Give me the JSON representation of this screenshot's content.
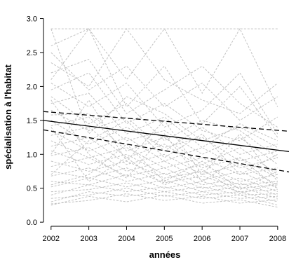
{
  "chart_data": {
    "type": "line",
    "xlabel": "années",
    "ylabel": "spécialisation à l'habitat",
    "x_ticks": [
      "2002",
      "2003",
      "2004",
      "2005",
      "2006",
      "2007",
      "2008"
    ],
    "y_ticks": [
      "0.0",
      "0.5",
      "1.0",
      "1.5",
      "2.0",
      "2.5",
      "3.0"
    ],
    "xlim": [
      2001.8,
      2008.3
    ],
    "ylim": [
      -0.05,
      3.15
    ],
    "series": [
      {
        "values": [
          [
            2002,
            2.85
          ],
          [
            2003,
            1.3
          ],
          [
            2004,
            1.85
          ],
          [
            2005,
            1.6
          ],
          [
            2006,
            1.2
          ],
          [
            2007,
            1.4
          ],
          [
            2008,
            1.1
          ]
        ]
      },
      {
        "values": [
          [
            2002,
            2.6
          ],
          [
            2003,
            2.85
          ],
          [
            2004,
            2.1
          ],
          [
            2005,
            2.85
          ],
          [
            2006,
            1.9
          ],
          [
            2007,
            2.85
          ],
          [
            2008,
            1.7
          ]
        ]
      },
      {
        "values": [
          [
            2002,
            2.35
          ],
          [
            2003,
            2.0
          ],
          [
            2004,
            2.85
          ],
          [
            2005,
            2.1
          ],
          [
            2006,
            1.8
          ],
          [
            2007,
            1.6
          ],
          [
            2008,
            2.05
          ]
        ]
      },
      {
        "values": [
          [
            2002,
            2.2
          ],
          [
            2003,
            2.4
          ],
          [
            2004,
            1.6
          ],
          [
            2005,
            1.95
          ],
          [
            2006,
            2.3
          ],
          [
            2007,
            1.75
          ],
          [
            2008,
            1.4
          ]
        ]
      },
      {
        "values": [
          [
            2002,
            2.05
          ],
          [
            2003,
            1.7
          ],
          [
            2004,
            2.05
          ],
          [
            2005,
            1.4
          ],
          [
            2006,
            1.65
          ],
          [
            2007,
            2.2
          ],
          [
            2008,
            1.3
          ]
        ]
      },
      {
        "values": [
          [
            2002,
            1.95
          ],
          [
            2003,
            2.2
          ],
          [
            2004,
            1.45
          ],
          [
            2005,
            1.75
          ],
          [
            2006,
            1.35
          ],
          [
            2007,
            1.2
          ],
          [
            2008,
            1.55
          ]
        ]
      },
      {
        "values": [
          [
            2002,
            1.85
          ],
          [
            2003,
            1.45
          ],
          [
            2004,
            1.75
          ],
          [
            2005,
            1.2
          ],
          [
            2006,
            1.5
          ],
          [
            2007,
            1.35
          ],
          [
            2008,
            0.95
          ]
        ]
      },
      {
        "values": [
          [
            2002,
            1.75
          ],
          [
            2003,
            1.9
          ],
          [
            2004,
            1.3
          ],
          [
            2005,
            1.55
          ],
          [
            2006,
            1.1
          ],
          [
            2007,
            1.45
          ],
          [
            2008,
            1.2
          ]
        ]
      },
      {
        "values": [
          [
            2002,
            1.65
          ],
          [
            2003,
            1.35
          ],
          [
            2004,
            1.55
          ],
          [
            2005,
            1.05
          ],
          [
            2006,
            1.4
          ],
          [
            2007,
            1.0
          ],
          [
            2008,
            1.15
          ]
        ]
      },
      {
        "values": [
          [
            2002,
            1.58
          ],
          [
            2003,
            1.6
          ],
          [
            2004,
            1.2
          ],
          [
            2005,
            1.35
          ],
          [
            2006,
            1.0
          ],
          [
            2007,
            1.25
          ],
          [
            2008,
            0.85
          ]
        ]
      },
      {
        "values": [
          [
            2002,
            1.5
          ],
          [
            2003,
            1.15
          ],
          [
            2004,
            1.4
          ],
          [
            2005,
            1.1
          ],
          [
            2006,
            1.25
          ],
          [
            2007,
            0.9
          ],
          [
            2008,
            1.05
          ]
        ]
      },
      {
        "values": [
          [
            2002,
            1.42
          ],
          [
            2003,
            1.55
          ],
          [
            2004,
            1.05
          ],
          [
            2005,
            1.25
          ],
          [
            2006,
            0.85
          ],
          [
            2007,
            1.1
          ],
          [
            2008,
            0.7
          ]
        ]
      },
      {
        "values": [
          [
            2002,
            1.35
          ],
          [
            2003,
            1.05
          ],
          [
            2004,
            1.25
          ],
          [
            2005,
            0.9
          ],
          [
            2006,
            1.1
          ],
          [
            2007,
            0.8
          ],
          [
            2008,
            0.95
          ]
        ]
      },
      {
        "values": [
          [
            2002,
            1.28
          ],
          [
            2003,
            1.4
          ],
          [
            2004,
            0.95
          ],
          [
            2005,
            1.15
          ],
          [
            2006,
            0.8
          ],
          [
            2007,
            0.95
          ],
          [
            2008,
            0.65
          ]
        ]
      },
      {
        "values": [
          [
            2002,
            1.2
          ],
          [
            2003,
            0.95
          ],
          [
            2004,
            1.1
          ],
          [
            2005,
            0.8
          ],
          [
            2006,
            0.95
          ],
          [
            2007,
            0.7
          ],
          [
            2008,
            0.8
          ]
        ]
      },
      {
        "values": [
          [
            2002,
            1.12
          ],
          [
            2003,
            1.25
          ],
          [
            2004,
            0.85
          ],
          [
            2005,
            1.0
          ],
          [
            2006,
            0.7
          ],
          [
            2007,
            0.85
          ],
          [
            2008,
            0.55
          ]
        ]
      },
      {
        "values": [
          [
            2002,
            1.05
          ],
          [
            2003,
            0.85
          ],
          [
            2004,
            1.0
          ],
          [
            2005,
            0.7
          ],
          [
            2006,
            0.85
          ],
          [
            2007,
            0.6
          ],
          [
            2008,
            0.7
          ]
        ]
      },
      {
        "values": [
          [
            2002,
            0.98
          ],
          [
            2003,
            1.1
          ],
          [
            2004,
            0.75
          ],
          [
            2005,
            0.9
          ],
          [
            2006,
            0.62
          ],
          [
            2007,
            0.75
          ],
          [
            2008,
            0.5
          ]
        ]
      },
      {
        "values": [
          [
            2002,
            0.9
          ],
          [
            2003,
            0.75
          ],
          [
            2004,
            0.9
          ],
          [
            2005,
            0.65
          ],
          [
            2006,
            0.75
          ],
          [
            2007,
            0.55
          ],
          [
            2008,
            0.6
          ]
        ]
      },
      {
        "values": [
          [
            2002,
            0.82
          ],
          [
            2003,
            0.95
          ],
          [
            2004,
            0.68
          ],
          [
            2005,
            0.8
          ],
          [
            2006,
            0.55
          ],
          [
            2007,
            0.65
          ],
          [
            2008,
            0.45
          ]
        ]
      },
      {
        "values": [
          [
            2002,
            0.75
          ],
          [
            2003,
            0.65
          ],
          [
            2004,
            0.8
          ],
          [
            2005,
            0.58
          ],
          [
            2006,
            0.68
          ],
          [
            2007,
            0.5
          ],
          [
            2008,
            0.55
          ]
        ]
      },
      {
        "values": [
          [
            2002,
            0.68
          ],
          [
            2003,
            0.8
          ],
          [
            2004,
            0.6
          ],
          [
            2005,
            0.72
          ],
          [
            2006,
            0.5
          ],
          [
            2007,
            0.58
          ],
          [
            2008,
            0.4
          ]
        ]
      },
      {
        "values": [
          [
            2002,
            0.6
          ],
          [
            2003,
            0.55
          ],
          [
            2004,
            0.7
          ],
          [
            2005,
            0.5
          ],
          [
            2006,
            0.6
          ],
          [
            2007,
            0.45
          ],
          [
            2008,
            0.48
          ]
        ]
      },
      {
        "values": [
          [
            2002,
            0.52
          ],
          [
            2003,
            0.65
          ],
          [
            2004,
            0.52
          ],
          [
            2005,
            0.62
          ],
          [
            2006,
            0.45
          ],
          [
            2007,
            0.52
          ],
          [
            2008,
            0.35
          ]
        ]
      },
      {
        "values": [
          [
            2002,
            0.45
          ],
          [
            2003,
            0.48
          ],
          [
            2004,
            0.58
          ],
          [
            2005,
            0.45
          ],
          [
            2006,
            0.52
          ],
          [
            2007,
            0.4
          ],
          [
            2008,
            0.42
          ]
        ]
      },
      {
        "values": [
          [
            2002,
            0.4
          ],
          [
            2003,
            0.55
          ],
          [
            2004,
            0.45
          ],
          [
            2005,
            0.52
          ],
          [
            2006,
            0.4
          ],
          [
            2007,
            0.45
          ],
          [
            2008,
            0.3
          ]
        ]
      },
      {
        "values": [
          [
            2002,
            0.35
          ],
          [
            2003,
            0.4
          ],
          [
            2004,
            0.5
          ],
          [
            2005,
            0.38
          ],
          [
            2006,
            0.45
          ],
          [
            2007,
            0.35
          ],
          [
            2008,
            0.38
          ]
        ]
      },
      {
        "values": [
          [
            2002,
            0.3
          ],
          [
            2003,
            0.45
          ],
          [
            2004,
            0.38
          ],
          [
            2005,
            0.45
          ],
          [
            2006,
            0.35
          ],
          [
            2007,
            0.4
          ],
          [
            2008,
            0.25
          ]
        ]
      },
      {
        "values": [
          [
            2002,
            0.27
          ],
          [
            2003,
            0.32
          ],
          [
            2004,
            0.42
          ],
          [
            2005,
            0.32
          ],
          [
            2006,
            0.38
          ],
          [
            2007,
            0.28
          ],
          [
            2008,
            0.33
          ]
        ]
      },
      {
        "values": [
          [
            2002,
            0.25
          ],
          [
            2003,
            0.38
          ],
          [
            2004,
            0.3
          ],
          [
            2005,
            0.4
          ],
          [
            2006,
            0.28
          ],
          [
            2007,
            0.33
          ],
          [
            2008,
            0.22
          ]
        ]
      },
      {
        "values": [
          [
            2002,
            2.85
          ],
          [
            2003,
            2.85
          ],
          [
            2004,
            2.85
          ],
          [
            2005,
            2.85
          ],
          [
            2006,
            2.85
          ],
          [
            2007,
            2.85
          ],
          [
            2008,
            2.85
          ]
        ]
      },
      {
        "values": [
          [
            2002,
            2.5
          ],
          [
            2003,
            1.95
          ],
          [
            2004,
            2.3
          ],
          [
            2005,
            1.7
          ],
          [
            2006,
            2.05
          ],
          [
            2007,
            1.5
          ],
          [
            2008,
            1.85
          ]
        ]
      },
      {
        "values": [
          [
            2002,
            1.0
          ],
          [
            2003,
            1.8
          ],
          [
            2004,
            0.9
          ],
          [
            2005,
            1.5
          ],
          [
            2006,
            0.7
          ],
          [
            2007,
            1.3
          ],
          [
            2008,
            0.6
          ]
        ]
      },
      {
        "values": [
          [
            2002,
            0.7
          ],
          [
            2003,
            1.2
          ],
          [
            2004,
            1.5
          ],
          [
            2005,
            0.95
          ],
          [
            2006,
            1.3
          ],
          [
            2007,
            0.7
          ],
          [
            2008,
            1.0
          ]
        ]
      },
      {
        "values": [
          [
            2002,
            1.8
          ],
          [
            2003,
            1.0
          ],
          [
            2004,
            0.65
          ],
          [
            2005,
            1.3
          ],
          [
            2006,
            0.6
          ],
          [
            2007,
            0.95
          ],
          [
            2008,
            0.5
          ]
        ]
      },
      {
        "values": [
          [
            2002,
            0.55
          ],
          [
            2003,
            0.7
          ],
          [
            2004,
            1.15
          ],
          [
            2005,
            0.6
          ],
          [
            2006,
            0.9
          ],
          [
            2007,
            0.48
          ],
          [
            2008,
            0.75
          ]
        ]
      },
      {
        "values": [
          [
            2002,
            2.1
          ],
          [
            2003,
            2.85
          ],
          [
            2004,
            1.7
          ],
          [
            2005,
            2.3
          ],
          [
            2006,
            1.45
          ],
          [
            2007,
            2.0
          ],
          [
            2008,
            1.25
          ]
        ]
      },
      {
        "values": [
          [
            2002,
            1.4
          ],
          [
            2003,
            0.6
          ],
          [
            2004,
            0.95
          ],
          [
            2005,
            0.55
          ],
          [
            2006,
            0.78
          ],
          [
            2007,
            0.42
          ],
          [
            2008,
            0.58
          ]
        ]
      }
    ],
    "fit": {
      "line": [
        [
          2001.8,
          1.5
        ],
        [
          2008.3,
          1.04
        ]
      ],
      "ci_upper": [
        [
          2001.8,
          1.63
        ],
        [
          2008.3,
          1.34
        ]
      ],
      "ci_lower": [
        [
          2001.8,
          1.36
        ],
        [
          2008.3,
          0.74
        ]
      ]
    }
  }
}
